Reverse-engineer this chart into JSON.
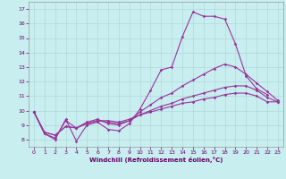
{
  "xlabel": "Windchill (Refroidissement éolien,°C)",
  "background_color": "#c8eef0",
  "grid_color": "#b0d8da",
  "line_color": "#993399",
  "hours": [
    0,
    1,
    2,
    3,
    4,
    5,
    6,
    7,
    8,
    9,
    10,
    11,
    12,
    13,
    14,
    15,
    16,
    17,
    18,
    19,
    20,
    21,
    22,
    23
  ],
  "line1": [
    9.9,
    8.4,
    8.0,
    9.4,
    7.9,
    9.0,
    9.2,
    8.7,
    8.6,
    9.1,
    10.1,
    11.4,
    12.8,
    13.0,
    15.1,
    16.8,
    16.5,
    16.5,
    16.3,
    14.6,
    12.4,
    11.5,
    11.1,
    null
  ],
  "line2": [
    9.9,
    8.4,
    8.1,
    9.3,
    8.8,
    9.2,
    9.4,
    9.1,
    9.0,
    9.3,
    9.9,
    10.4,
    10.9,
    11.2,
    11.7,
    12.1,
    12.5,
    12.9,
    13.2,
    13.0,
    12.5,
    11.9,
    11.3,
    10.7
  ],
  "line3": [
    9.9,
    8.5,
    8.3,
    8.9,
    8.8,
    9.1,
    9.3,
    9.2,
    9.1,
    9.3,
    9.7,
    10.0,
    10.3,
    10.5,
    10.8,
    11.0,
    11.2,
    11.4,
    11.6,
    11.7,
    11.7,
    11.4,
    10.9,
    10.6
  ],
  "line4": [
    9.9,
    8.5,
    8.3,
    8.9,
    8.8,
    9.1,
    9.3,
    9.3,
    9.2,
    9.4,
    9.7,
    9.9,
    10.1,
    10.3,
    10.5,
    10.6,
    10.8,
    10.9,
    11.1,
    11.2,
    11.2,
    11.0,
    10.6,
    10.6
  ],
  "ylim": [
    7.5,
    17.5
  ],
  "yticks": [
    8,
    9,
    10,
    11,
    12,
    13,
    14,
    15,
    16,
    17
  ],
  "xticks": [
    0,
    1,
    2,
    3,
    4,
    5,
    6,
    7,
    8,
    9,
    10,
    11,
    12,
    13,
    14,
    15,
    16,
    17,
    18,
    19,
    20,
    21,
    22,
    23
  ],
  "tick_color": "#660066",
  "spine_color": "#999999"
}
